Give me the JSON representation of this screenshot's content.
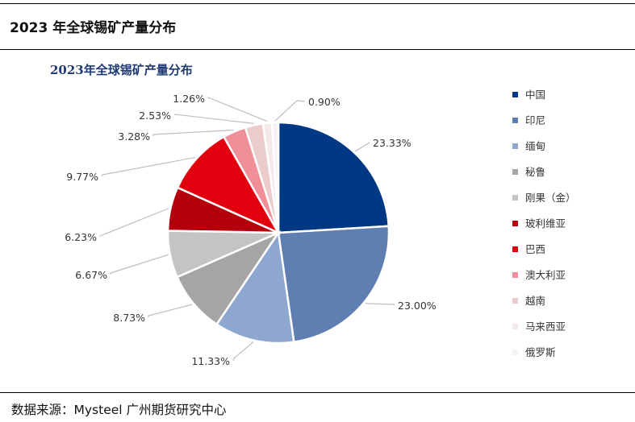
{
  "header": {
    "title": "2023 年全球锡矿产量分布"
  },
  "footer": {
    "source": "数据来源：Mysteel  广州期货研究中心"
  },
  "chart_data": {
    "type": "pie",
    "title": "2023年全球锡矿产量分布",
    "legend_position": "right",
    "start_angle_deg": 0,
    "direction": "clockwise",
    "slices": [
      {
        "name": "中国",
        "value": 23.33,
        "label": "23.33%",
        "color": "#003884"
      },
      {
        "name": "印尼",
        "value": 23.0,
        "label": "23.00%",
        "color": "#5f7fb2"
      },
      {
        "name": "缅甸",
        "value": 11.33,
        "label": "11.33%",
        "color": "#8da7cf"
      },
      {
        "name": "秘鲁",
        "value": 8.73,
        "label": "8.73%",
        "color": "#a5a5a5"
      },
      {
        "name": "刚果（金）",
        "value": 6.67,
        "label": "6.67%",
        "color": "#c4c4c4"
      },
      {
        "name": "玻利维亚",
        "value": 6.23,
        "label": "6.23%",
        "color": "#b3000c"
      },
      {
        "name": "巴西",
        "value": 9.77,
        "label": "9.77%",
        "color": "#e2000e"
      },
      {
        "name": "澳大利亚",
        "value": 3.28,
        "label": "3.28%",
        "color": "#f08f98"
      },
      {
        "name": "越南",
        "value": 2.53,
        "label": "2.53%",
        "color": "#ebcbcb"
      },
      {
        "name": "马来西亚",
        "value": 1.26,
        "label": "1.26%",
        "color": "#f4e8e8"
      },
      {
        "name": "俄罗斯",
        "value": 0.9,
        "label": "0.90%",
        "color": "#f6f2f2"
      }
    ]
  }
}
